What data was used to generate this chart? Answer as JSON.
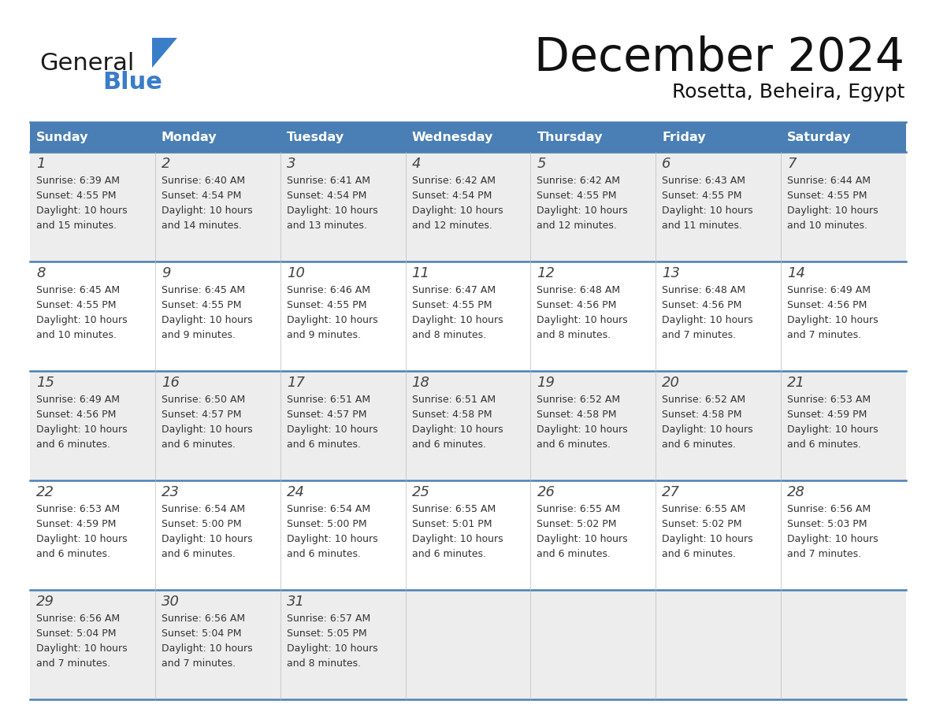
{
  "title": "December 2024",
  "subtitle": "Rosetta, Beheira, Egypt",
  "days_of_week": [
    "Sunday",
    "Monday",
    "Tuesday",
    "Wednesday",
    "Thursday",
    "Friday",
    "Saturday"
  ],
  "header_bg": "#4A7FB5",
  "header_text": "#FFFFFF",
  "row_bg_odd": "#EDEDED",
  "row_bg_even": "#FFFFFF",
  "divider_color": "#4A7FB5",
  "text_color": "#333333",
  "day_num_color": "#444444",
  "calendar_data": [
    [
      {
        "day": 1,
        "sunrise": "6:39 AM",
        "sunset": "4:55 PM",
        "daylight_h": "10 hours",
        "daylight_m": "and 15 minutes."
      },
      {
        "day": 2,
        "sunrise": "6:40 AM",
        "sunset": "4:54 PM",
        "daylight_h": "10 hours",
        "daylight_m": "and 14 minutes."
      },
      {
        "day": 3,
        "sunrise": "6:41 AM",
        "sunset": "4:54 PM",
        "daylight_h": "10 hours",
        "daylight_m": "and 13 minutes."
      },
      {
        "day": 4,
        "sunrise": "6:42 AM",
        "sunset": "4:54 PM",
        "daylight_h": "10 hours",
        "daylight_m": "and 12 minutes."
      },
      {
        "day": 5,
        "sunrise": "6:42 AM",
        "sunset": "4:55 PM",
        "daylight_h": "10 hours",
        "daylight_m": "and 12 minutes."
      },
      {
        "day": 6,
        "sunrise": "6:43 AM",
        "sunset": "4:55 PM",
        "daylight_h": "10 hours",
        "daylight_m": "and 11 minutes."
      },
      {
        "day": 7,
        "sunrise": "6:44 AM",
        "sunset": "4:55 PM",
        "daylight_h": "10 hours",
        "daylight_m": "and 10 minutes."
      }
    ],
    [
      {
        "day": 8,
        "sunrise": "6:45 AM",
        "sunset": "4:55 PM",
        "daylight_h": "10 hours",
        "daylight_m": "and 10 minutes."
      },
      {
        "day": 9,
        "sunrise": "6:45 AM",
        "sunset": "4:55 PM",
        "daylight_h": "10 hours",
        "daylight_m": "and 9 minutes."
      },
      {
        "day": 10,
        "sunrise": "6:46 AM",
        "sunset": "4:55 PM",
        "daylight_h": "10 hours",
        "daylight_m": "and 9 minutes."
      },
      {
        "day": 11,
        "sunrise": "6:47 AM",
        "sunset": "4:55 PM",
        "daylight_h": "10 hours",
        "daylight_m": "and 8 minutes."
      },
      {
        "day": 12,
        "sunrise": "6:48 AM",
        "sunset": "4:56 PM",
        "daylight_h": "10 hours",
        "daylight_m": "and 8 minutes."
      },
      {
        "day": 13,
        "sunrise": "6:48 AM",
        "sunset": "4:56 PM",
        "daylight_h": "10 hours",
        "daylight_m": "and 7 minutes."
      },
      {
        "day": 14,
        "sunrise": "6:49 AM",
        "sunset": "4:56 PM",
        "daylight_h": "10 hours",
        "daylight_m": "and 7 minutes."
      }
    ],
    [
      {
        "day": 15,
        "sunrise": "6:49 AM",
        "sunset": "4:56 PM",
        "daylight_h": "10 hours",
        "daylight_m": "and 6 minutes."
      },
      {
        "day": 16,
        "sunrise": "6:50 AM",
        "sunset": "4:57 PM",
        "daylight_h": "10 hours",
        "daylight_m": "and 6 minutes."
      },
      {
        "day": 17,
        "sunrise": "6:51 AM",
        "sunset": "4:57 PM",
        "daylight_h": "10 hours",
        "daylight_m": "and 6 minutes."
      },
      {
        "day": 18,
        "sunrise": "6:51 AM",
        "sunset": "4:58 PM",
        "daylight_h": "10 hours",
        "daylight_m": "and 6 minutes."
      },
      {
        "day": 19,
        "sunrise": "6:52 AM",
        "sunset": "4:58 PM",
        "daylight_h": "10 hours",
        "daylight_m": "and 6 minutes."
      },
      {
        "day": 20,
        "sunrise": "6:52 AM",
        "sunset": "4:58 PM",
        "daylight_h": "10 hours",
        "daylight_m": "and 6 minutes."
      },
      {
        "day": 21,
        "sunrise": "6:53 AM",
        "sunset": "4:59 PM",
        "daylight_h": "10 hours",
        "daylight_m": "and 6 minutes."
      }
    ],
    [
      {
        "day": 22,
        "sunrise": "6:53 AM",
        "sunset": "4:59 PM",
        "daylight_h": "10 hours",
        "daylight_m": "and 6 minutes."
      },
      {
        "day": 23,
        "sunrise": "6:54 AM",
        "sunset": "5:00 PM",
        "daylight_h": "10 hours",
        "daylight_m": "and 6 minutes."
      },
      {
        "day": 24,
        "sunrise": "6:54 AM",
        "sunset": "5:00 PM",
        "daylight_h": "10 hours",
        "daylight_m": "and 6 minutes."
      },
      {
        "day": 25,
        "sunrise": "6:55 AM",
        "sunset": "5:01 PM",
        "daylight_h": "10 hours",
        "daylight_m": "and 6 minutes."
      },
      {
        "day": 26,
        "sunrise": "6:55 AM",
        "sunset": "5:02 PM",
        "daylight_h": "10 hours",
        "daylight_m": "and 6 minutes."
      },
      {
        "day": 27,
        "sunrise": "6:55 AM",
        "sunset": "5:02 PM",
        "daylight_h": "10 hours",
        "daylight_m": "and 6 minutes."
      },
      {
        "day": 28,
        "sunrise": "6:56 AM",
        "sunset": "5:03 PM",
        "daylight_h": "10 hours",
        "daylight_m": "and 7 minutes."
      }
    ],
    [
      {
        "day": 29,
        "sunrise": "6:56 AM",
        "sunset": "5:04 PM",
        "daylight_h": "10 hours",
        "daylight_m": "and 7 minutes."
      },
      {
        "day": 30,
        "sunrise": "6:56 AM",
        "sunset": "5:04 PM",
        "daylight_h": "10 hours",
        "daylight_m": "and 7 minutes."
      },
      {
        "day": 31,
        "sunrise": "6:57 AM",
        "sunset": "5:05 PM",
        "daylight_h": "10 hours",
        "daylight_m": "and 8 minutes."
      },
      null,
      null,
      null,
      null
    ]
  ],
  "logo_color_general": "#1a1a1a",
  "logo_color_blue": "#3A7DC9",
  "logo_triangle_color": "#3A7DC9"
}
